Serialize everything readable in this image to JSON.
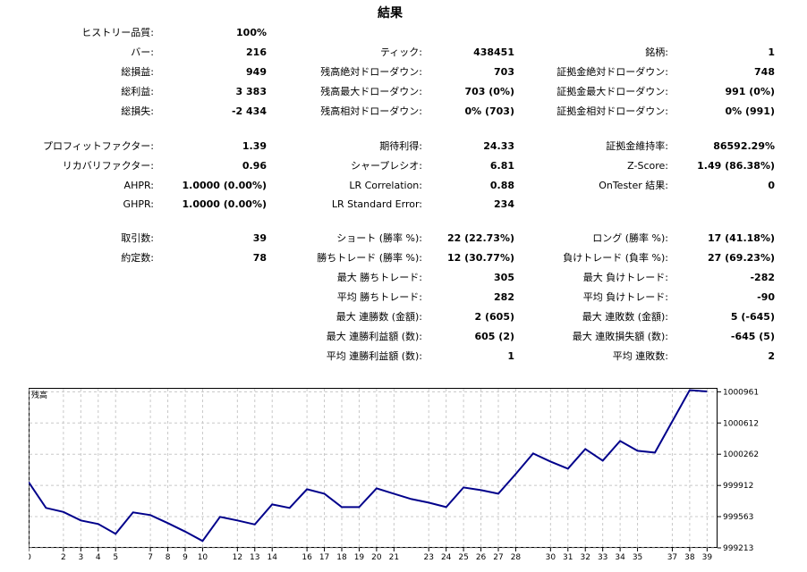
{
  "title": "結果",
  "rows": [
    {
      "top": 30,
      "c1": [
        "ヒストリー品質:",
        "100%"
      ],
      "c2": null,
      "c3": null
    },
    {
      "top": 52,
      "c1": [
        "バー:",
        "216"
      ],
      "c2": [
        "ティック:",
        "438451"
      ],
      "c3": [
        "銘柄:",
        "1"
      ]
    },
    {
      "top": 74,
      "c1": [
        "総損益:",
        "949"
      ],
      "c2": [
        "残高絶対ドローダウン:",
        "703"
      ],
      "c3": [
        "証拠金絶対ドローダウン:",
        "748"
      ]
    },
    {
      "top": 96,
      "c1": [
        "総利益:",
        "3 383"
      ],
      "c2": [
        "残高最大ドローダウン:",
        "703 (0%)"
      ],
      "c3": [
        "証拠金最大ドローダウン:",
        "991 (0%)"
      ]
    },
    {
      "top": 118,
      "c1": [
        "総損失:",
        "-2 434"
      ],
      "c2": [
        "残高相対ドローダウン:",
        "0% (703)"
      ],
      "c3": [
        "証拠金相対ドローダウン:",
        "0% (991)"
      ]
    },
    {
      "top": 157,
      "c1": [
        "プロフィットファクター:",
        "1.39"
      ],
      "c2": [
        "期待利得:",
        "24.33"
      ],
      "c3": [
        "証拠金維持率:",
        "86592.29%"
      ]
    },
    {
      "top": 179,
      "c1": [
        "リカバリファクター:",
        "0.96"
      ],
      "c2": [
        "シャープレシオ:",
        "6.81"
      ],
      "c3": [
        "Z-Score:",
        "1.49 (86.38%)"
      ]
    },
    {
      "top": 201,
      "c1": [
        "AHPR:",
        "1.0000 (0.00%)"
      ],
      "c2": [
        "LR Correlation:",
        "0.88"
      ],
      "c3": [
        "OnTester 結果:",
        "0"
      ]
    },
    {
      "top": 222,
      "c1": [
        "GHPR:",
        "1.0000 (0.00%)"
      ],
      "c2": [
        "LR Standard Error:",
        "234"
      ],
      "c3": null
    },
    {
      "top": 260,
      "c1": [
        "取引数:",
        "39"
      ],
      "c2": [
        "ショート (勝率 %):",
        "22 (22.73%)"
      ],
      "c3": [
        "ロング (勝率 %):",
        "17 (41.18%)"
      ]
    },
    {
      "top": 282,
      "c1": [
        "約定数:",
        "78"
      ],
      "c2": [
        "勝ちトレード (勝率 %):",
        "12 (30.77%)"
      ],
      "c3": [
        "負けトレード (負率 %):",
        "27 (69.23%)"
      ]
    },
    {
      "top": 304,
      "c1": null,
      "c2": [
        "最大 勝ちトレード:",
        "305"
      ],
      "c3": [
        "最大 負けトレード:",
        "-282"
      ]
    },
    {
      "top": 326,
      "c1": null,
      "c2": [
        "平均 勝ちトレード:",
        "282"
      ],
      "c3": [
        "平均 負けトレード:",
        "-90"
      ]
    },
    {
      "top": 348,
      "c1": null,
      "c2": [
        "最大 連勝数 (金額):",
        "2 (605)"
      ],
      "c3": [
        "最大 連敗数 (金額):",
        "5 (-645)"
      ]
    },
    {
      "top": 370,
      "c1": null,
      "c2": [
        "最大 連勝利益額 (数):",
        "605 (2)"
      ],
      "c3": [
        "最大 連敗損失額 (数):",
        "-645 (5)"
      ]
    },
    {
      "top": 392,
      "c1": null,
      "c2": [
        "平均 連勝利益額 (数):",
        "1"
      ],
      "c3": [
        "平均 連敗数:",
        "2"
      ]
    }
  ],
  "chart_data": {
    "type": "line",
    "title": "残高",
    "line_color": "#00008b",
    "grid": true,
    "xlim": [
      0,
      39.6
    ],
    "ylim": [
      999213,
      1001005
    ],
    "x_ticks": [
      0,
      2,
      3,
      4,
      5,
      7,
      8,
      9,
      10,
      12,
      13,
      14,
      16,
      17,
      18,
      19,
      20,
      21,
      23,
      24,
      25,
      26,
      27,
      28,
      30,
      31,
      32,
      33,
      34,
      35,
      37,
      38,
      39
    ],
    "x_tick_labels": [
      "0",
      "2",
      "3",
      "4",
      "5",
      "7",
      "8",
      "9",
      "10",
      "12",
      "13",
      "14",
      "16",
      "17",
      "18",
      "19",
      "20",
      "21",
      "23",
      "24",
      "25",
      "26",
      "27",
      "28",
      "30",
      "31",
      "32",
      "33",
      "34",
      "35",
      "37",
      "38",
      "39"
    ],
    "y_ticks": [
      999213,
      999563,
      999912,
      1000262,
      1000612,
      1000961
    ],
    "y_tick_labels": [
      "999213",
      "999563",
      "999912",
      "1000262",
      "1000612",
      "1000961"
    ],
    "series": [
      {
        "x": [
          0,
          1,
          2,
          3,
          4,
          5,
          6,
          7,
          8,
          9,
          10,
          11,
          12,
          13,
          14,
          15,
          16,
          17,
          18,
          19,
          20,
          21,
          22,
          23,
          24,
          25,
          26,
          27,
          28,
          29,
          30,
          31,
          32,
          33,
          34,
          35,
          36,
          37,
          38,
          39
        ],
        "y": [
          999950,
          999660,
          999615,
          999520,
          999480,
          999370,
          999610,
          999580,
          999490,
          999395,
          999290,
          999560,
          999520,
          999475,
          999700,
          999660,
          999870,
          999820,
          999670,
          999670,
          999880,
          999820,
          999760,
          999720,
          999670,
          999890,
          999860,
          999820,
          1000040,
          1000270,
          1000180,
          1000100,
          1000320,
          1000190,
          1000410,
          1000300,
          1000280,
          1000630,
          1000980,
          1000965
        ]
      }
    ]
  }
}
